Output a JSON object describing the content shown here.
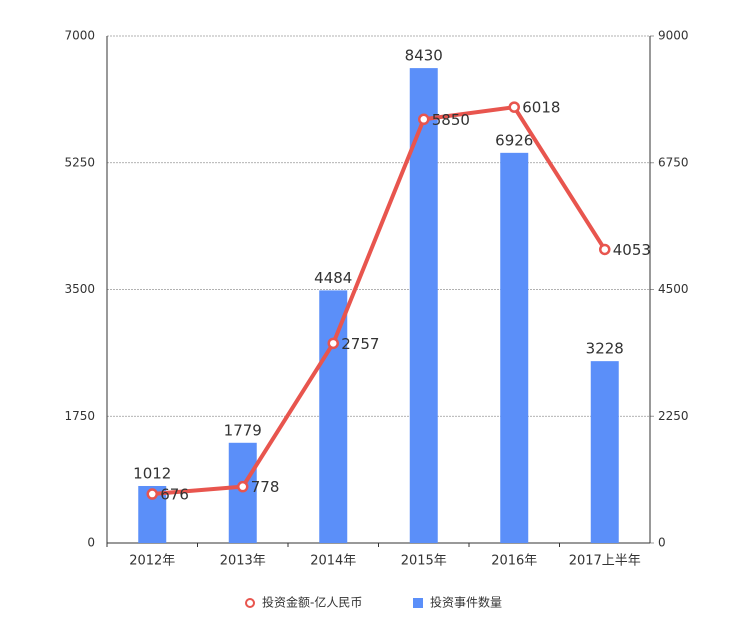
{
  "chart_data": {
    "type": "combo",
    "categories": [
      "2012年",
      "2013年",
      "2014年",
      "2015年",
      "2016年",
      "2017上半年"
    ],
    "series": [
      {
        "name": "投资金额-亿人民币",
        "type": "line",
        "color": "#e8554e",
        "values": [
          676,
          778,
          2757,
          5850,
          6018,
          4053
        ]
      },
      {
        "name": "投资事件数量",
        "type": "bar",
        "color": "#5b8ff9",
        "axis": "y2",
        "values": [
          1012,
          1779,
          4484,
          8430,
          6926,
          3228
        ]
      }
    ],
    "ylim": [
      0,
      7000
    ],
    "yticks": [
      0,
      1750,
      3500,
      5250,
      7000
    ],
    "y2lim": [
      0,
      9000
    ],
    "y2ticks": [
      0,
      2250,
      4500,
      6750,
      9000
    ],
    "grid": true,
    "legend": "bottom"
  }
}
